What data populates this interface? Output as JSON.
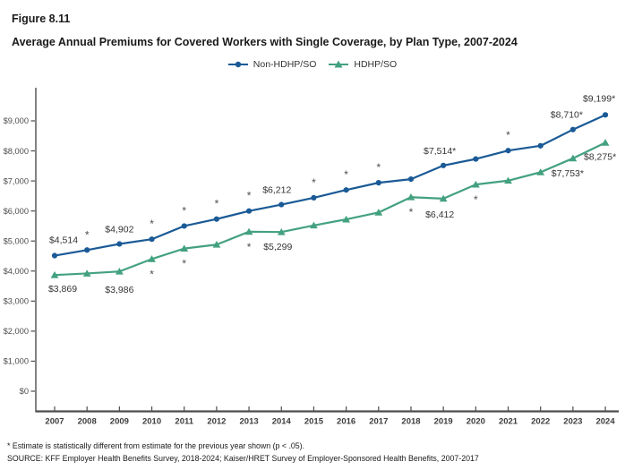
{
  "header": {
    "figure_label": "Figure 8.11",
    "title": "Average Annual Premiums for Covered Workers with Single Coverage, by Plan Type, 2007-2024"
  },
  "legend": {
    "items": [
      {
        "label": "Non-HDHP/SO",
        "marker": "circle",
        "color": "#1a5a96"
      },
      {
        "label": "HDHP/SO",
        "marker": "triangle",
        "color": "#43a17f"
      }
    ]
  },
  "chart_data": {
    "type": "line",
    "x": [
      2007,
      2008,
      2009,
      2010,
      2011,
      2012,
      2013,
      2014,
      2015,
      2016,
      2017,
      2018,
      2019,
      2020,
      2021,
      2022,
      2023,
      2024
    ],
    "xlabel": "",
    "ylabel": "",
    "ylim": [
      0,
      9500
    ],
    "grid": false,
    "legend_position": "top-center",
    "yticks": [
      {
        "v": 0,
        "label": "$0"
      },
      {
        "v": 1000,
        "label": "$1,000"
      },
      {
        "v": 2000,
        "label": "$2,000"
      },
      {
        "v": 3000,
        "label": "$3,000"
      },
      {
        "v": 4000,
        "label": "$4,000"
      },
      {
        "v": 5000,
        "label": "$5,000"
      },
      {
        "v": 6000,
        "label": "$6,000"
      },
      {
        "v": 7000,
        "label": "$7,000"
      },
      {
        "v": 8000,
        "label": "$8,000"
      },
      {
        "v": 9000,
        "label": "$9,000"
      }
    ],
    "series": [
      {
        "name": "Non-HDHP/SO",
        "color": "#1a5a96",
        "marker": "circle",
        "star_side": "above",
        "values": [
          4514,
          4700,
          4902,
          5060,
          5500,
          5730,
          6000,
          6212,
          6440,
          6700,
          6940,
          7060,
          7514,
          7730,
          8010,
          8170,
          8710,
          9199
        ],
        "asterisk_years": [
          2008,
          2010,
          2011,
          2012,
          2013,
          2015,
          2016,
          2017,
          2021
        ],
        "data_labels": [
          {
            "year": 2007,
            "text": "$4,514",
            "dx": 10,
            "dy": -14
          },
          {
            "year": 2009,
            "text": "$4,902",
            "dx": 0,
            "dy": -13
          },
          {
            "year": 2014,
            "text": "$6,212",
            "dx": -5,
            "dy": -13
          },
          {
            "year": 2019,
            "text": "$7,514*",
            "dx": -4,
            "dy": -13
          },
          {
            "year": 2023,
            "text": "$8,710*",
            "dx": -7,
            "dy": -13
          },
          {
            "year": 2024,
            "text": "$9,199*",
            "dx": -7,
            "dy": -15
          }
        ]
      },
      {
        "name": "HDHP/SO",
        "color": "#43a17f",
        "marker": "triangle",
        "star_side": "below",
        "values": [
          3869,
          3920,
          3986,
          4400,
          4750,
          4880,
          5310,
          5299,
          5520,
          5720,
          5950,
          6460,
          6412,
          6880,
          7010,
          7290,
          7753,
          8275
        ],
        "asterisk_years": [
          2010,
          2011,
          2013,
          2018,
          2020
        ],
        "data_labels": [
          {
            "year": 2007,
            "text": "$3,869",
            "dx": 9,
            "dy": 19
          },
          {
            "year": 2009,
            "text": "$3,986",
            "dx": 0,
            "dy": 24
          },
          {
            "year": 2014,
            "text": "$5,299",
            "dx": -4,
            "dy": 20
          },
          {
            "year": 2019,
            "text": "$6,412",
            "dx": -4,
            "dy": 21
          },
          {
            "year": 2023,
            "text": "$7,753*",
            "dx": -6,
            "dy": 20
          },
          {
            "year": 2024,
            "text": "$8,275*",
            "dx": -6,
            "dy": 19
          }
        ]
      }
    ]
  },
  "footer": {
    "footnote": "* Estimate is statistically different from estimate for the previous year shown (p < .05).",
    "source": "SOURCE: KFF Employer Health Benefits Survey, 2018-2024; Kaiser/HRET Survey of Employer-Sponsored Health Benefits, 2007-2017"
  }
}
